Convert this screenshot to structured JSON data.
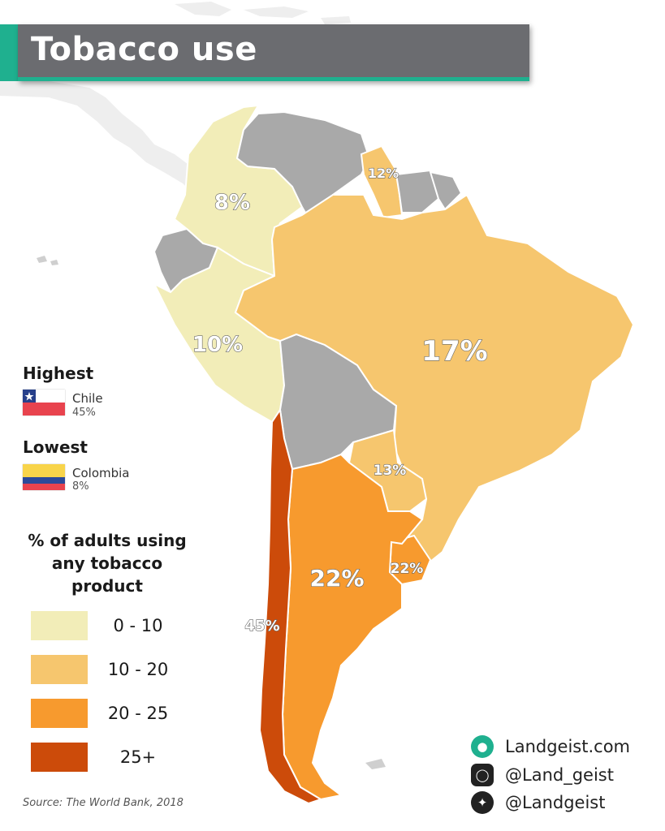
{
  "title": "Tobacco use",
  "regions": [
    {
      "country": "Colombia",
      "label": "8%",
      "bin": "0 - 10"
    },
    {
      "country": "Peru",
      "label": "10%",
      "bin": "0 - 10"
    },
    {
      "country": "Guyana",
      "label": "12%",
      "bin": "10 - 20"
    },
    {
      "country": "Brazil",
      "label": "17%",
      "bin": "10 - 20"
    },
    {
      "country": "Paraguay",
      "label": "13%",
      "bin": "10 - 20"
    },
    {
      "country": "Argentina",
      "label": "22%",
      "bin": "20 - 25"
    },
    {
      "country": "Uruguay",
      "label": "22%",
      "bin": "20 - 25"
    },
    {
      "country": "Chile",
      "label": "45%",
      "bin": "25+"
    }
  ],
  "highest": {
    "heading": "Highest",
    "country": "Chile",
    "value": "45%"
  },
  "lowest": {
    "heading": "Lowest",
    "country": "Colombia",
    "value": "8%"
  },
  "legend": {
    "title": "% of adults using any tobacco product",
    "items": [
      {
        "label": "0  - 10",
        "color": "#f2edb8"
      },
      {
        "label": "10 - 20",
        "color": "#f6c66e"
      },
      {
        "label": "20 - 25",
        "color": "#f79a2e"
      },
      {
        "label": "25+",
        "color": "#cc4b0a"
      }
    ]
  },
  "no_data_color": "#a9a9a9",
  "source": "Source: The World Bank, 2018",
  "social": {
    "website": "Landgeist.com",
    "instagram": "@Land_geist",
    "twitter": "@Landgeist"
  },
  "icons": [
    "globe-icon",
    "instagram-icon",
    "twitter-icon",
    "chile-flag",
    "colombia-flag"
  ]
}
